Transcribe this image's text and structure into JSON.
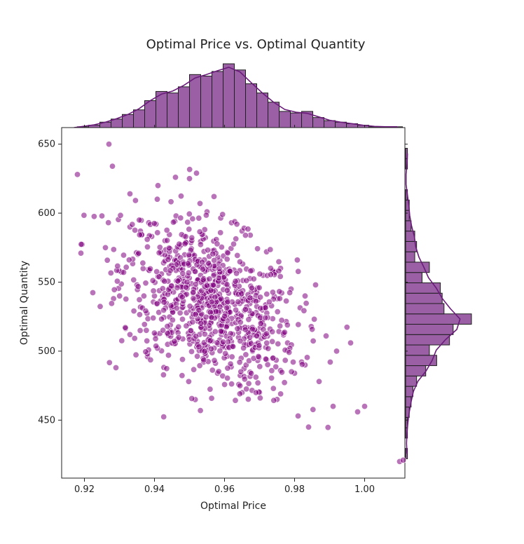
{
  "chart_data": {
    "type": "scatter",
    "title": "Optimal Price vs. Optimal Quantity",
    "xlabel": "Optimal Price",
    "ylabel": "Optimal Quantity",
    "xlim": [
      0.9135,
      1.0115
    ],
    "ylim": [
      408,
      662
    ],
    "x_ticks": [
      0.92,
      0.94,
      0.96,
      0.98,
      1.0
    ],
    "x_tick_labels": [
      "0.92",
      "0.94",
      "0.96",
      "0.98",
      "1.00"
    ],
    "y_ticks": [
      450,
      500,
      550,
      600,
      650
    ],
    "y_tick_labels": [
      "450",
      "500",
      "550",
      "600",
      "650"
    ],
    "grid": false,
    "marginals": "histogram with kde on top (x) and right (y)",
    "colors": {
      "points": "#800080",
      "hist_fill": "#9b5fa6",
      "hist_edge": "#1f1f1f",
      "kde": "#6a1b7a"
    },
    "points_sample": [
      [
        0.918,
        628
      ],
      [
        0.927,
        650
      ],
      [
        0.928,
        634
      ],
      [
        0.919,
        571
      ],
      [
        0.925,
        598
      ],
      [
        0.926,
        575
      ],
      [
        0.929,
        488
      ],
      [
        0.933,
        614
      ],
      [
        0.936,
        587
      ],
      [
        0.938,
        496
      ],
      [
        0.941,
        620
      ],
      [
        0.946,
        626
      ],
      [
        0.95,
        625
      ],
      [
        0.952,
        629
      ],
      [
        0.955,
        601
      ],
      [
        0.957,
        612
      ],
      [
        0.953,
        607
      ],
      [
        0.962,
        593
      ],
      [
        0.965,
        587
      ],
      [
        0.972,
        572
      ],
      [
        0.976,
        560
      ],
      [
        0.979,
        545
      ],
      [
        0.983,
        540
      ],
      [
        0.986,
        548
      ],
      [
        0.989,
        511
      ],
      [
        0.992,
        500
      ],
      [
        0.996,
        506
      ],
      [
        0.998,
        456
      ],
      [
        1.0,
        460
      ],
      [
        0.991,
        460
      ],
      [
        0.984,
        445
      ],
      [
        0.981,
        453
      ],
      [
        0.975,
        465
      ],
      [
        0.97,
        470
      ],
      [
        0.965,
        470
      ],
      [
        0.958,
        484
      ],
      [
        0.954,
        492
      ],
      [
        0.948,
        494
      ],
      [
        0.944,
        497
      ],
      [
        0.938,
        498
      ],
      [
        0.933,
        512
      ],
      [
        0.935,
        548
      ],
      [
        0.941,
        554
      ],
      [
        0.947,
        560
      ],
      [
        0.951,
        542
      ],
      [
        0.956,
        532
      ],
      [
        0.96,
        520
      ],
      [
        0.964,
        510
      ],
      [
        0.968,
        500
      ],
      [
        0.972,
        494
      ],
      [
        0.976,
        486
      ],
      [
        0.98,
        484
      ],
      [
        0.983,
        490
      ],
      [
        0.987,
        478
      ],
      [
        0.943,
        580
      ],
      [
        0.947,
        575
      ],
      [
        0.952,
        565
      ],
      [
        0.957,
        556
      ],
      [
        0.961,
        546
      ],
      [
        0.966,
        538
      ],
      [
        0.969,
        528
      ],
      [
        0.973,
        516
      ],
      [
        0.978,
        506
      ],
      [
        0.94,
        540
      ],
      [
        0.945,
        530
      ],
      [
        0.95,
        520
      ],
      [
        1.01,
        420
      ],
      [
        1.011,
        421
      ]
    ],
    "x_hist_counts": [
      1,
      2,
      4,
      6,
      9,
      12,
      18,
      24,
      23,
      27,
      35,
      34,
      37,
      42,
      38,
      29,
      23,
      17,
      11,
      10,
      11,
      7,
      5,
      4,
      3,
      2,
      1,
      1,
      1
    ],
    "y_hist_counts": [
      1,
      0,
      1,
      1,
      2,
      3,
      4,
      6,
      11,
      17,
      13,
      24,
      26,
      36,
      21,
      20,
      19,
      9,
      13,
      5,
      6,
      5,
      3,
      2,
      2,
      1,
      0,
      0,
      1,
      1
    ],
    "y_hist_bin_start": 422,
    "y_hist_bin_width": 7.5,
    "x_hist_bin_start": 0.918,
    "x_hist_bin_width": 0.0032
  }
}
